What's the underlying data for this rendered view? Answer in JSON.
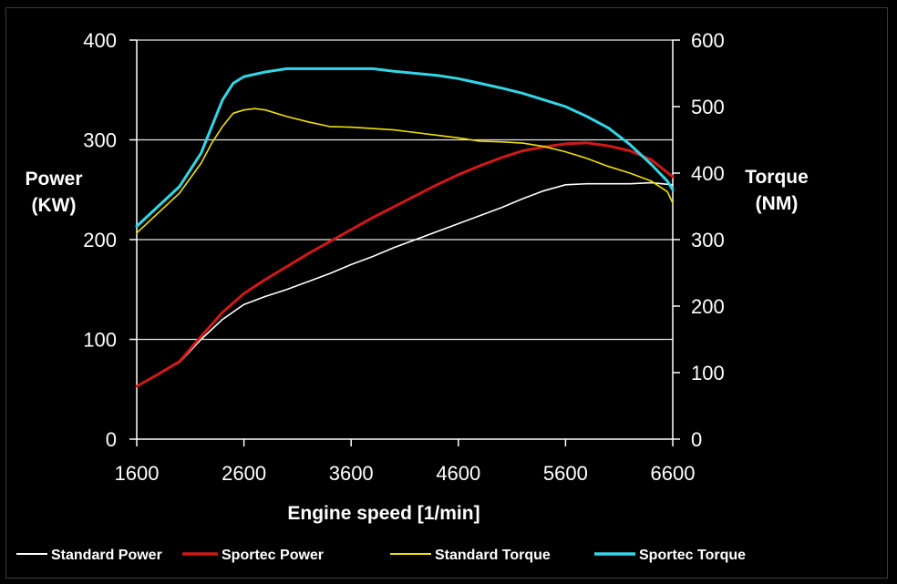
{
  "chart_data": {
    "type": "line",
    "xlabel": "Engine speed [1/min]",
    "ylabel_left": [
      "Power",
      "(KW)"
    ],
    "ylabel_right": [
      "Torque",
      "(NM)"
    ],
    "xlim": [
      1600,
      6600
    ],
    "ylim_left": [
      0,
      400
    ],
    "ylim_right": [
      0,
      600
    ],
    "x_ticks": [
      1600,
      2600,
      3600,
      4600,
      5600,
      6600
    ],
    "y_ticks_left": [
      0,
      100,
      200,
      300,
      400
    ],
    "y_ticks_right": [
      0,
      100,
      200,
      300,
      400,
      500,
      600
    ],
    "grid": "horizontal",
    "legend_position": "bottom",
    "series": [
      {
        "name": "Standard Power",
        "axis": "left",
        "color": "#ffffff",
        "x": [
          1600,
          1800,
          2000,
          2200,
          2400,
          2600,
          2800,
          3000,
          3200,
          3400,
          3600,
          3800,
          4000,
          4200,
          4400,
          4600,
          4800,
          5000,
          5200,
          5400,
          5600,
          5800,
          6000,
          6200,
          6400,
          6600
        ],
        "values": [
          53,
          65,
          77,
          100,
          120,
          135,
          143,
          150,
          158,
          166,
          175,
          183,
          192,
          200,
          208,
          216,
          224,
          232,
          241,
          249,
          255,
          256,
          256,
          256,
          257,
          255
        ]
      },
      {
        "name": "Sportec Power",
        "axis": "left",
        "color": "#d21818",
        "x": [
          1600,
          1800,
          2000,
          2200,
          2400,
          2600,
          2800,
          3000,
          3200,
          3400,
          3600,
          3800,
          4000,
          4200,
          4400,
          4600,
          4800,
          5000,
          5200,
          5400,
          5600,
          5800,
          6000,
          6200,
          6400,
          6600
        ],
        "values": [
          53,
          65,
          78,
          103,
          127,
          146,
          160,
          173,
          186,
          198,
          210,
          222,
          233,
          244,
          255,
          265,
          274,
          282,
          289,
          293,
          296,
          297,
          294,
          289,
          280,
          263
        ]
      },
      {
        "name": "Standard Torque",
        "axis": "right",
        "color": "#f0e000",
        "x": [
          1600,
          1800,
          2000,
          2200,
          2300,
          2400,
          2500,
          2600,
          2700,
          2800,
          3000,
          3200,
          3400,
          3600,
          3800,
          4000,
          4200,
          4400,
          4600,
          4800,
          5000,
          5200,
          5400,
          5600,
          5800,
          6000,
          6200,
          6400,
          6550,
          6600
        ],
        "values": [
          310,
          340,
          370,
          415,
          445,
          470,
          490,
          495,
          497,
          495,
          485,
          477,
          470,
          469,
          467,
          465,
          461,
          457,
          453,
          448,
          447,
          445,
          440,
          432,
          422,
          410,
          400,
          388,
          372,
          355
        ]
      },
      {
        "name": "Sportec Torque",
        "axis": "right",
        "color": "#33d6e6",
        "x": [
          1600,
          1800,
          2000,
          2200,
          2300,
          2400,
          2500,
          2600,
          2800,
          3000,
          3200,
          3400,
          3600,
          3800,
          4000,
          4200,
          4400,
          4600,
          4800,
          5000,
          5200,
          5400,
          5600,
          5800,
          6000,
          6200,
          6400,
          6550,
          6600
        ],
        "values": [
          320,
          350,
          380,
          430,
          470,
          510,
          535,
          545,
          552,
          557,
          557,
          557,
          557,
          557,
          553,
          550,
          547,
          542,
          535,
          528,
          520,
          510,
          500,
          485,
          468,
          443,
          413,
          388,
          375
        ]
      }
    ]
  }
}
